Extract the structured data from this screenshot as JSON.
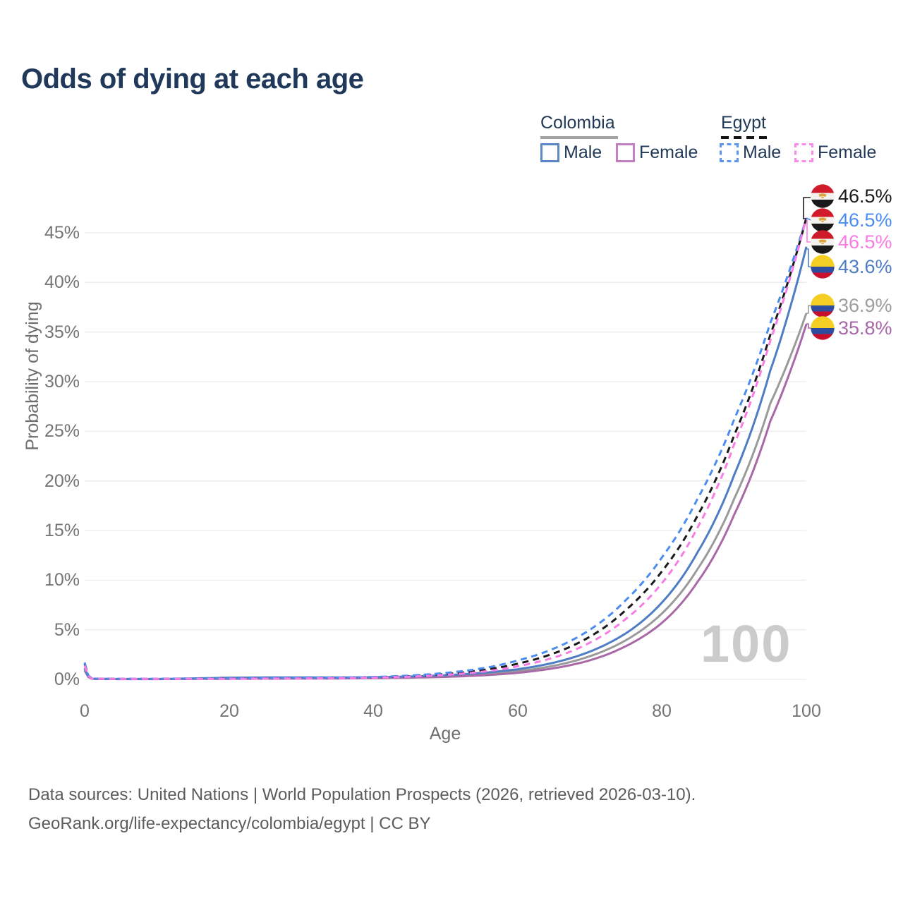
{
  "title": "Odds of dying at each age",
  "legend": {
    "groups": [
      {
        "label": "Colombia",
        "line_style": "solid",
        "underline_color": "#a3a3a3",
        "items": [
          {
            "label": "Male",
            "color": "#5b87c5"
          },
          {
            "label": "Female",
            "color": "#c47fc2"
          }
        ]
      },
      {
        "label": "Egypt",
        "line_style": "dashed",
        "underline_color": "#141414",
        "items": [
          {
            "label": "Male",
            "color": "#5b95f2"
          },
          {
            "label": "Female",
            "color": "#fa8ae9"
          }
        ]
      }
    ]
  },
  "axes": {
    "y_title": "Probability of dying",
    "x_title": "Age",
    "y_ticks": [
      {
        "label": "45%",
        "value": 45
      },
      {
        "label": "40%",
        "value": 40
      },
      {
        "label": "35%",
        "value": 35
      },
      {
        "label": "30%",
        "value": 30
      },
      {
        "label": "25%",
        "value": 25
      },
      {
        "label": "20%",
        "value": 20
      },
      {
        "label": "15%",
        "value": 15
      },
      {
        "label": "10%",
        "value": 10
      },
      {
        "label": "5%",
        "value": 5
      },
      {
        "label": "0%",
        "value": 0
      }
    ],
    "x_ticks": [
      {
        "label": "0",
        "value": 0
      },
      {
        "label": "20",
        "value": 20
      },
      {
        "label": "40",
        "value": 40
      },
      {
        "label": "60",
        "value": 60
      },
      {
        "label": "80",
        "value": 80
      },
      {
        "label": "100",
        "value": 100
      }
    ]
  },
  "watermark": "100",
  "end_labels": [
    {
      "value": "46.5%",
      "color": "#1a1a1a",
      "flag": "egypt",
      "series": "Egypt"
    },
    {
      "value": "46.5%",
      "color": "#4a8cf0",
      "flag": "egypt",
      "series": "Egypt Male"
    },
    {
      "value": "46.5%",
      "color": "#f97ce4",
      "flag": "egypt",
      "series": "Egypt Female"
    },
    {
      "value": "43.6%",
      "color": "#4e7dc3",
      "flag": "colombia",
      "series": "Colombia Male"
    },
    {
      "value": "36.9%",
      "color": "#9e9e9e",
      "flag": "colombia",
      "series": "Colombia"
    },
    {
      "value": "35.8%",
      "color": "#a766a7",
      "flag": "colombia",
      "series": "Colombia Female"
    }
  ],
  "footer": {
    "line1": "Data sources: United Nations | World Population Prospects (2026, retrieved 2026-03-10).",
    "line2": "GeoRank.org/life-expectancy/colombia/egypt | CC BY"
  },
  "chart_data": {
    "type": "line",
    "title": "Odds of dying at each age",
    "xlabel": "Age",
    "ylabel": "Probability of dying",
    "xlim": [
      0,
      100
    ],
    "ylim": [
      0,
      47
    ],
    "y_unit": "%",
    "grid": "horizontal",
    "legend_position": "top-right",
    "control_ages": [
      0,
      1,
      2,
      5,
      10,
      15,
      20,
      25,
      30,
      35,
      40,
      45,
      50,
      55,
      60,
      65,
      70,
      75,
      80,
      85,
      90,
      95,
      100
    ],
    "series": [
      {
        "name": "Colombia",
        "country": "Colombia",
        "sex": "all",
        "style": "solid",
        "color": "#9a9a9a",
        "end_value_pct": 36.9,
        "values_pct": [
          1.0,
          0.07,
          0.045,
          0.035,
          0.035,
          0.07,
          0.11,
          0.13,
          0.13,
          0.135,
          0.165,
          0.22,
          0.32,
          0.51,
          0.82,
          1.37,
          2.33,
          3.95,
          6.65,
          11.2,
          18.2,
          27.8,
          36.9
        ]
      },
      {
        "name": "Colombia Female",
        "country": "Colombia",
        "sex": "female",
        "style": "solid",
        "color": "#a968a6",
        "end_value_pct": 35.8,
        "values_pct": [
          0.9,
          0.06,
          0.04,
          0.03,
          0.03,
          0.045,
          0.06,
          0.07,
          0.08,
          0.095,
          0.125,
          0.17,
          0.25,
          0.4,
          0.66,
          1.12,
          1.92,
          3.35,
          5.7,
          9.9,
          16.6,
          26.0,
          35.8
        ]
      },
      {
        "name": "Colombia Male",
        "country": "Colombia",
        "sex": "male",
        "style": "solid",
        "color": "#4e7dc3",
        "end_value_pct": 43.6,
        "values_pct": [
          1.15,
          0.08,
          0.05,
          0.04,
          0.04,
          0.1,
          0.17,
          0.19,
          0.19,
          0.19,
          0.22,
          0.29,
          0.42,
          0.65,
          1.02,
          1.68,
          2.8,
          4.65,
          7.75,
          12.9,
          20.6,
          31.1,
          43.6
        ]
      },
      {
        "name": "Egypt",
        "country": "Egypt",
        "sex": "all",
        "style": "dashed",
        "color": "#1a1a1a",
        "end_value_pct": 46.5,
        "values_pct": [
          1.55,
          0.09,
          0.055,
          0.045,
          0.045,
          0.06,
          0.08,
          0.09,
          0.11,
          0.145,
          0.2,
          0.32,
          0.54,
          0.92,
          1.58,
          2.62,
          4.3,
          7.0,
          10.9,
          16.6,
          24.6,
          34.7,
          46.5
        ]
      },
      {
        "name": "Egypt Male",
        "country": "Egypt",
        "sex": "male",
        "style": "dashed",
        "color": "#4a8cf0",
        "end_value_pct": 46.5,
        "values_pct": [
          1.7,
          0.1,
          0.06,
          0.05,
          0.05,
          0.07,
          0.1,
          0.11,
          0.13,
          0.17,
          0.24,
          0.38,
          0.65,
          1.1,
          1.9,
          3.1,
          5.0,
          8.0,
          12.3,
          18.3,
          26.2,
          35.9,
          46.5
        ]
      },
      {
        "name": "Egypt Female",
        "country": "Egypt",
        "sex": "female",
        "style": "dashed",
        "color": "#f97ce4",
        "end_value_pct": 46.5,
        "values_pct": [
          1.4,
          0.08,
          0.05,
          0.04,
          0.04,
          0.05,
          0.06,
          0.075,
          0.095,
          0.12,
          0.17,
          0.27,
          0.45,
          0.76,
          1.32,
          2.2,
          3.7,
          6.1,
          9.7,
          15.4,
          23.7,
          34.1,
          46.5
        ]
      }
    ]
  }
}
